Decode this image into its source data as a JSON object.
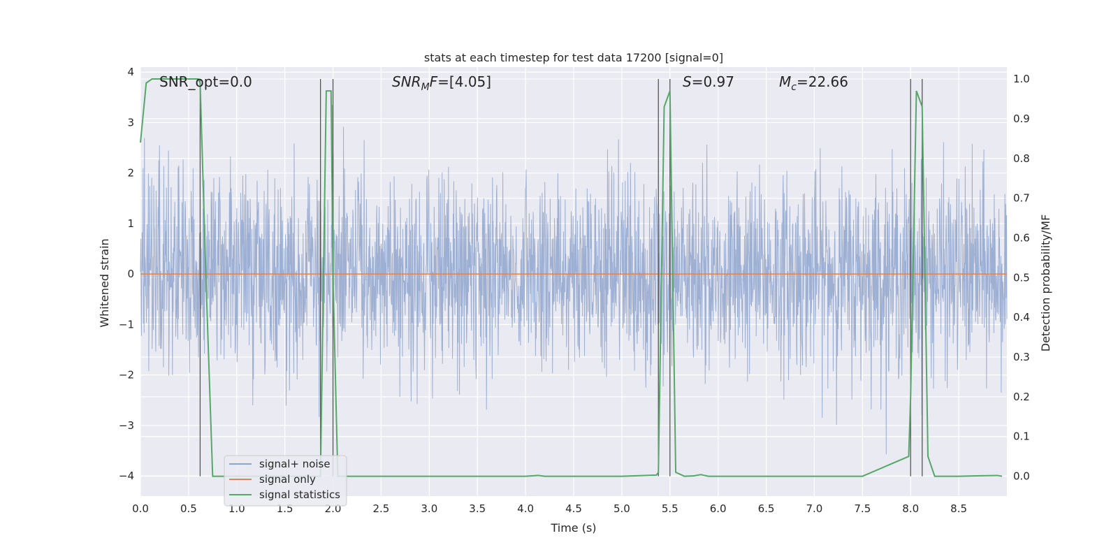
{
  "chart_data": {
    "type": "line",
    "title": "stats at each timestep for test data 17200 [signal=0]",
    "xlabel": "Time (s)",
    "ylabel_left": "Whitened strain",
    "ylabel_right": "Detection probability/MF",
    "xlim": [
      0.0,
      9.0
    ],
    "ylim_left": [
      -4.4,
      4.1
    ],
    "ylim_right": [
      -0.05,
      1.03
    ],
    "x_ticks": [
      "0.0",
      "0.5",
      "1.0",
      "1.5",
      "2.0",
      "2.5",
      "3.0",
      "3.5",
      "4.0",
      "4.5",
      "5.0",
      "5.5",
      "6.0",
      "6.5",
      "7.0",
      "7.5",
      "8.0",
      "8.5"
    ],
    "y_ticks_left": [
      "4",
      "3",
      "2",
      "1",
      "0",
      "−1",
      "−2",
      "−3",
      "−4"
    ],
    "y_ticks_right": [
      "1.0",
      "0.9",
      "0.8",
      "0.7",
      "0.6",
      "0.5",
      "0.4",
      "0.3",
      "0.2",
      "0.1",
      "0.0"
    ],
    "grid": true,
    "legend_position": "lower-left",
    "annotations": {
      "snr_opt": "SNR_opt=0.0",
      "snr_mf_sym": "SNR",
      "snr_mf_sub": "M",
      "snr_mf_sym2": "F",
      "snr_mf_val": "=[4.05]",
      "s_sym": "S",
      "s_val": "=0.97",
      "mc_sym": "M",
      "mc_sub": "c",
      "mc_val": "=22.66"
    },
    "vertical_lines": [
      0.62,
      1.87,
      2.0,
      5.38,
      5.5,
      8.0,
      8.12
    ],
    "series": [
      {
        "name": "signal+ noise",
        "color": "#8fa4cc",
        "axis": "left",
        "description_values": "whitened noise, approx. range -4 to 3.7"
      },
      {
        "name": "signal only",
        "color": "#dd8452",
        "axis": "left",
        "x": [
          0.0,
          9.0
        ],
        "y": [
          0.0,
          0.0
        ]
      },
      {
        "name": "signal statistics",
        "color": "#55a868",
        "axis": "right",
        "x": [
          0.0,
          0.06,
          0.12,
          0.2,
          0.3,
          0.4,
          0.5,
          0.6,
          0.62,
          0.68,
          0.75,
          0.8,
          1.0,
          1.5,
          1.87,
          1.93,
          1.98,
          2.0,
          2.05,
          2.5,
          3.0,
          4.0,
          4.13,
          4.2,
          5.0,
          5.36,
          5.38,
          5.44,
          5.5,
          5.56,
          5.65,
          5.75,
          5.82,
          5.9,
          6.5,
          7.0,
          7.5,
          7.98,
          8.0,
          8.06,
          8.12,
          8.18,
          8.25,
          8.5,
          8.9,
          8.95
        ],
        "y": [
          0.84,
          0.99,
          1.0,
          1.0,
          1.0,
          1.0,
          1.0,
          1.0,
          0.99,
          0.5,
          0.0,
          0.0,
          0.0,
          0.0,
          0.0,
          0.97,
          0.97,
          0.5,
          0.0,
          0.0,
          0.0,
          0.0,
          0.002,
          0.0,
          0.0,
          0.003,
          0.01,
          0.93,
          0.97,
          0.01,
          0.0,
          0.001,
          0.004,
          0.0,
          0.0,
          0.0,
          0.0,
          0.05,
          0.2,
          0.97,
          0.93,
          0.05,
          0.0,
          0.0,
          0.002,
          0.0
        ]
      }
    ]
  }
}
